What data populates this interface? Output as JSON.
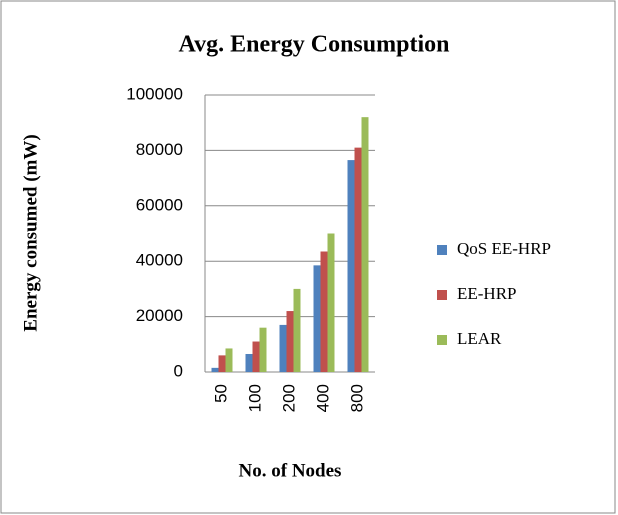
{
  "chart_data": {
    "type": "bar",
    "title": "Avg. Energy Consumption",
    "y_label": "Energy consumed (mW)",
    "x_label": "No. of Nodes",
    "categories": [
      "50",
      "100",
      "200",
      "400",
      "800"
    ],
    "series": [
      {
        "name": "QoS EE-HRP",
        "color": "#4f81bd",
        "values": [
          1500,
          6500,
          17000,
          38500,
          76500
        ]
      },
      {
        "name": "EE-HRP",
        "color": "#c0504d",
        "values": [
          6000,
          11000,
          22000,
          43500,
          81000
        ]
      },
      {
        "name": "LEAR",
        "color": "#9bbb59",
        "values": [
          8500,
          16000,
          30000,
          50000,
          92000
        ]
      }
    ],
    "ylim": [
      0,
      100000
    ],
    "yticks": [
      0,
      20000,
      40000,
      60000,
      80000,
      100000
    ],
    "grid": true,
    "legend": "right"
  }
}
